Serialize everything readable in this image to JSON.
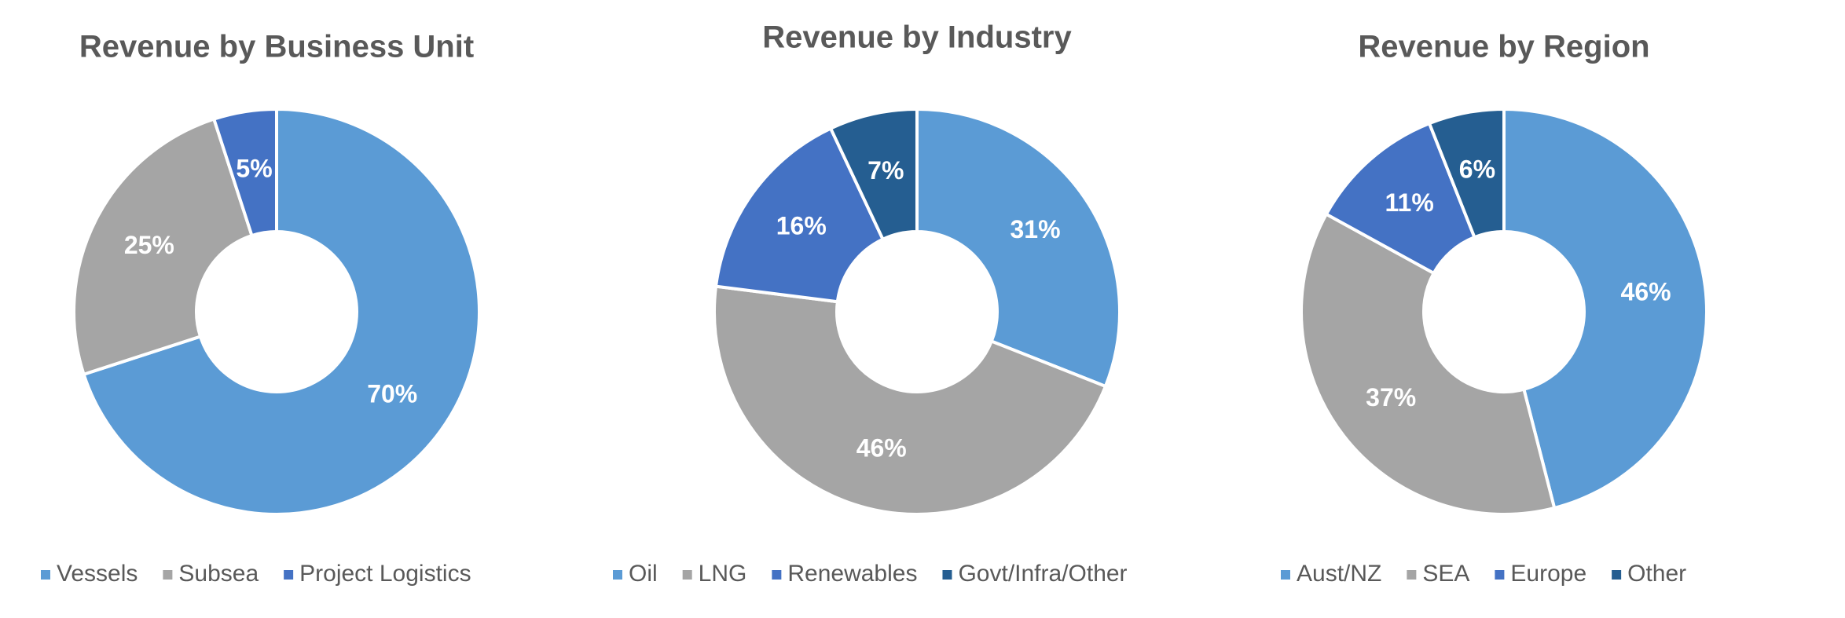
{
  "chart_data": [
    {
      "type": "donut",
      "title": "Revenue by Business Unit",
      "categories": [
        "Vessels",
        "Subsea",
        "Project Logistics"
      ],
      "values": [
        70,
        25,
        5
      ],
      "value_labels": [
        "70%",
        "25%",
        "5%"
      ],
      "colors": [
        "#5b9bd5",
        "#a5a5a5",
        "#4472c4"
      ],
      "legend": "bottom"
    },
    {
      "type": "donut",
      "title": "Revenue by Industry",
      "categories": [
        "Oil",
        "LNG",
        "Renewables",
        "Govt/Infra/Other"
      ],
      "values": [
        31,
        46,
        16,
        7
      ],
      "value_labels": [
        "31%",
        "46%",
        "16%",
        "7%"
      ],
      "colors": [
        "#5b9bd5",
        "#a5a5a5",
        "#4472c4",
        "#255e91"
      ],
      "legend": "bottom"
    },
    {
      "type": "donut",
      "title": "Revenue by Region",
      "categories": [
        "Aust/NZ",
        "SEA",
        "Europe",
        "Other"
      ],
      "values": [
        46,
        37,
        11,
        6
      ],
      "value_labels": [
        "46%",
        "37%",
        "11%",
        "6%"
      ],
      "colors": [
        "#5b9bd5",
        "#a5a5a5",
        "#4472c4",
        "#255e91"
      ],
      "legend": "bottom"
    }
  ]
}
